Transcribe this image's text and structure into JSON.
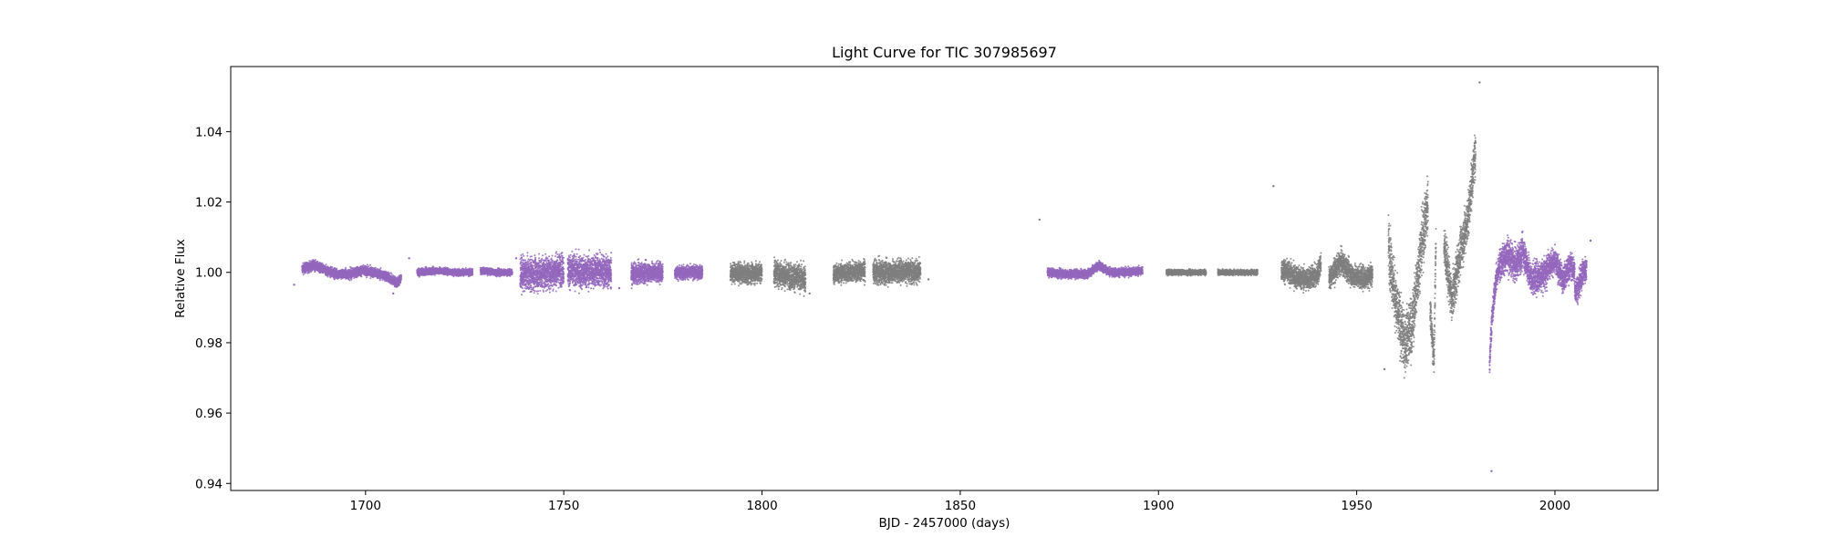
{
  "chart_data": {
    "type": "scatter",
    "title": "Light Curve for TIC 307985697",
    "xlabel": "BJD - 2457000 (days)",
    "ylabel": "Relative Flux",
    "xlim": [
      1666,
      2026
    ],
    "ylim": [
      0.938,
      1.0585
    ],
    "xticks": [
      1700,
      1750,
      1800,
      1850,
      1900,
      1950,
      2000
    ],
    "yticks": [
      0.94,
      0.96,
      0.98,
      1.0,
      1.02,
      1.04
    ],
    "xtick_labels": [
      "1700",
      "1750",
      "1800",
      "1850",
      "1900",
      "1950",
      "2000"
    ],
    "ytick_labels": [
      "0.94",
      "0.96",
      "0.98",
      "1.00",
      "1.02",
      "1.04"
    ],
    "grid": false,
    "colors": {
      "purple": "#9467bd",
      "gray": "#7f7f7f"
    },
    "series": [
      {
        "color": "purple",
        "segments": [
          {
            "x": [
              1684,
              1687,
              1690,
              1693,
              1696,
              1699,
              1702,
              1705,
              1708,
              1709
            ],
            "y": [
              1.001,
              1.002,
              1.0005,
              0.9995,
              0.9995,
              1.0005,
              1.0,
              0.999,
              0.997,
              0.9985
            ],
            "spread": 0.0015
          },
          {
            "x": [
              1713,
              1718,
              1723,
              1727
            ],
            "y": [
              1.0,
              1.0005,
              1.0,
              1.0
            ],
            "spread": 0.001
          },
          {
            "x": [
              1729,
              1733,
              1737
            ],
            "y": [
              1.0005,
              1.0,
              1.0
            ],
            "spread": 0.001
          },
          {
            "x": [
              1739,
              1743,
              1747,
              1750
            ],
            "y": [
              0.9995,
              0.9995,
              1.0,
              1.001
            ],
            "spread": 0.005
          },
          {
            "x": [
              1751,
              1755,
              1759,
              1762
            ],
            "y": [
              1.0005,
              1.0,
              1.0005,
              1.0
            ],
            "spread": 0.005
          },
          {
            "x": [
              1767,
              1771,
              1775
            ],
            "y": [
              0.9995,
              1.0,
              1.0
            ],
            "spread": 0.003
          },
          {
            "x": [
              1778,
              1781,
              1785
            ],
            "y": [
              1.0,
              1.0,
              1.0
            ],
            "spread": 0.002
          },
          {
            "x": [
              1872,
              1877,
              1882,
              1885,
              1888,
              1892,
              1896
            ],
            "y": [
              1.0,
              0.9995,
              0.9995,
              1.002,
              1.0,
              1.0,
              1.0005
            ],
            "spread": 0.0013
          },
          {
            "x": [
              1983.5,
              1984,
              1985,
              1986
            ],
            "y": [
              0.974,
              0.985,
              0.997,
              1.002
            ],
            "spread": 0.004
          },
          {
            "x": [
              1986,
              1988,
              1990,
              1992,
              1994,
              1996,
              1998
            ],
            "y": [
              1.002,
              1.005,
              1.002,
              1.006,
              0.998,
              0.999,
              1.0
            ],
            "spread": 0.005
          },
          {
            "x": [
              1998,
              2000,
              2002,
              2004,
              2005
            ],
            "y": [
              1.002,
              1.003,
              0.998,
              1.002,
              1.0
            ],
            "spread": 0.004
          },
          {
            "x": [
              2005,
              2006,
              2007,
              2008
            ],
            "y": [
              0.995,
              0.996,
              1.0,
              1.001
            ],
            "spread": 0.004
          }
        ],
        "outliers": [
          {
            "x": 1682,
            "y": 0.9965
          },
          {
            "x": 1711,
            "y": 1.004
          },
          {
            "x": 1707,
            "y": 0.994
          },
          {
            "x": 1764,
            "y": 0.9955
          },
          {
            "x": 1738,
            "y": 1.004
          },
          {
            "x": 1984,
            "y": 0.9435
          },
          {
            "x": 2009,
            "y": 1.009
          }
        ]
      },
      {
        "color": "gray",
        "segments": [
          {
            "x": [
              1792,
              1796,
              1800
            ],
            "y": [
              1.0,
              0.9995,
              1.0
            ],
            "spread": 0.003
          },
          {
            "x": [
              1803,
              1807,
              1811
            ],
            "y": [
              1.0,
              0.999,
              0.998
            ],
            "spread": 0.004
          },
          {
            "x": [
              1818,
              1822,
              1826
            ],
            "y": [
              0.9995,
              1.0,
              1.0005
            ],
            "spread": 0.003
          },
          {
            "x": [
              1828,
              1832,
              1836,
              1840
            ],
            "y": [
              1.0,
              1.0,
              1.0005,
              1.0
            ],
            "spread": 0.0035
          },
          {
            "x": [
              1902,
              1907,
              1912
            ],
            "y": [
              1.0,
              1.0,
              1.0
            ],
            "spread": 0.0008
          },
          {
            "x": [
              1915,
              1920,
              1925
            ],
            "y": [
              1.0,
              1.0,
              1.0
            ],
            "spread": 0.0008
          },
          {
            "x": [
              1931,
              1934,
              1937,
              1940,
              1941
            ],
            "y": [
              1.001,
              0.999,
              0.998,
              0.999,
              1.003
            ],
            "spread": 0.0035
          },
          {
            "x": [
              1943,
              1946,
              1949,
              1952,
              1954
            ],
            "y": [
              0.998,
              1.003,
              0.999,
              0.9985,
              0.9995
            ],
            "spread": 0.0035
          },
          {
            "x": [
              1958,
              1960,
              1962,
              1964,
              1966,
              1968
            ],
            "y": [
              1.008,
              0.99,
              0.98,
              0.985,
              1.005,
              1.02
            ],
            "spread": 0.009
          },
          {
            "x": [
              1968.5,
              1969.5,
              1970
            ],
            "y": [
              0.99,
              0.975,
              1.01
            ],
            "spread": 0.006
          },
          {
            "x": [
              1972,
              1974,
              1976,
              1978,
              1980
            ],
            "y": [
              1.008,
              0.992,
              1.005,
              1.015,
              1.035
            ],
            "spread": 0.007
          }
        ],
        "outliers": [
          {
            "x": 1870,
            "y": 1.015
          },
          {
            "x": 1929,
            "y": 1.0245
          },
          {
            "x": 1957,
            "y": 0.9725
          },
          {
            "x": 1981,
            "y": 1.054
          },
          {
            "x": 1842,
            "y": 0.998
          },
          {
            "x": 1812,
            "y": 0.994
          }
        ]
      }
    ]
  }
}
